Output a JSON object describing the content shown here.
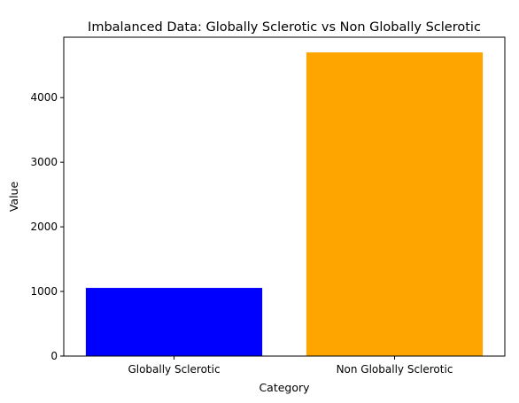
{
  "chart_data": {
    "type": "bar",
    "title": "Imbalanced Data: Globally Sclerotic vs Non Globally Sclerotic",
    "xlabel": "Category",
    "ylabel": "Value",
    "categories": [
      "Globally Sclerotic",
      "Non Globally Sclerotic"
    ],
    "values": [
      1055,
      4700
    ],
    "colors": [
      "#0000ff",
      "#ffa500"
    ],
    "yticks": [
      0,
      1000,
      2000,
      3000,
      4000
    ],
    "ylim": [
      0,
      4935
    ],
    "grid": false,
    "legend": "none"
  }
}
